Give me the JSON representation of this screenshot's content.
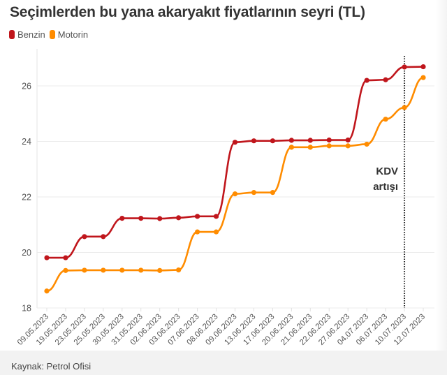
{
  "header": {
    "title": "Seçimlerden bu yana akaryakıt fiyatlarının seyri (TL)"
  },
  "legend": [
    {
      "label": "Benzin",
      "color": "#c0161c"
    },
    {
      "label": "Motorin",
      "color": "#ff8c00"
    }
  ],
  "annotation": {
    "line1": "KDV",
    "line2": "artışı",
    "at_category": "10.07.2023"
  },
  "footer": {
    "source": "Kaynak: Petrol Ofisi"
  },
  "chart_data": {
    "type": "line",
    "title": "Seçimlerden bu yana akaryakıt fiyatlarının seyri (TL)",
    "xlabel": "",
    "ylabel": "",
    "ylim": [
      18,
      27
    ],
    "yticks": [
      18,
      20,
      22,
      24,
      26
    ],
    "grid": true,
    "legend_position": "top-left",
    "categories": [
      "09.05.2023",
      "19.05.2023",
      "23.05.2023",
      "25.05.2023",
      "30.05.2023",
      "31.05.2023",
      "02.06.2023",
      "03.06.2023",
      "07.06.2023",
      "08.06.2023",
      "09.06.2023",
      "13.06.2023",
      "17.06.2023",
      "20.06.2023",
      "21.06.2023",
      "22.06.2023",
      "27.06.2023",
      "04.07.2023",
      "06.07.2023",
      "10.07.2023",
      "12.07.2023"
    ],
    "series": [
      {
        "name": "Benzin",
        "color": "#c0161c",
        "values": [
          19.81,
          19.81,
          20.57,
          20.57,
          21.23,
          21.23,
          21.22,
          21.25,
          21.3,
          21.3,
          23.97,
          24.02,
          24.02,
          24.04,
          24.04,
          24.05,
          24.05,
          26.2,
          26.22,
          26.68,
          26.69
        ]
      },
      {
        "name": "Motorin",
        "color": "#ff8c00",
        "values": [
          18.61,
          19.35,
          19.36,
          19.36,
          19.36,
          19.36,
          19.35,
          19.37,
          20.74,
          20.74,
          22.11,
          22.16,
          22.16,
          23.79,
          23.79,
          23.84,
          23.84,
          23.9,
          24.8,
          25.22,
          26.3
        ]
      }
    ],
    "annotations": [
      {
        "type": "vertical-dotted-line",
        "x": "10.07.2023",
        "label": "KDV artışı"
      }
    ]
  }
}
